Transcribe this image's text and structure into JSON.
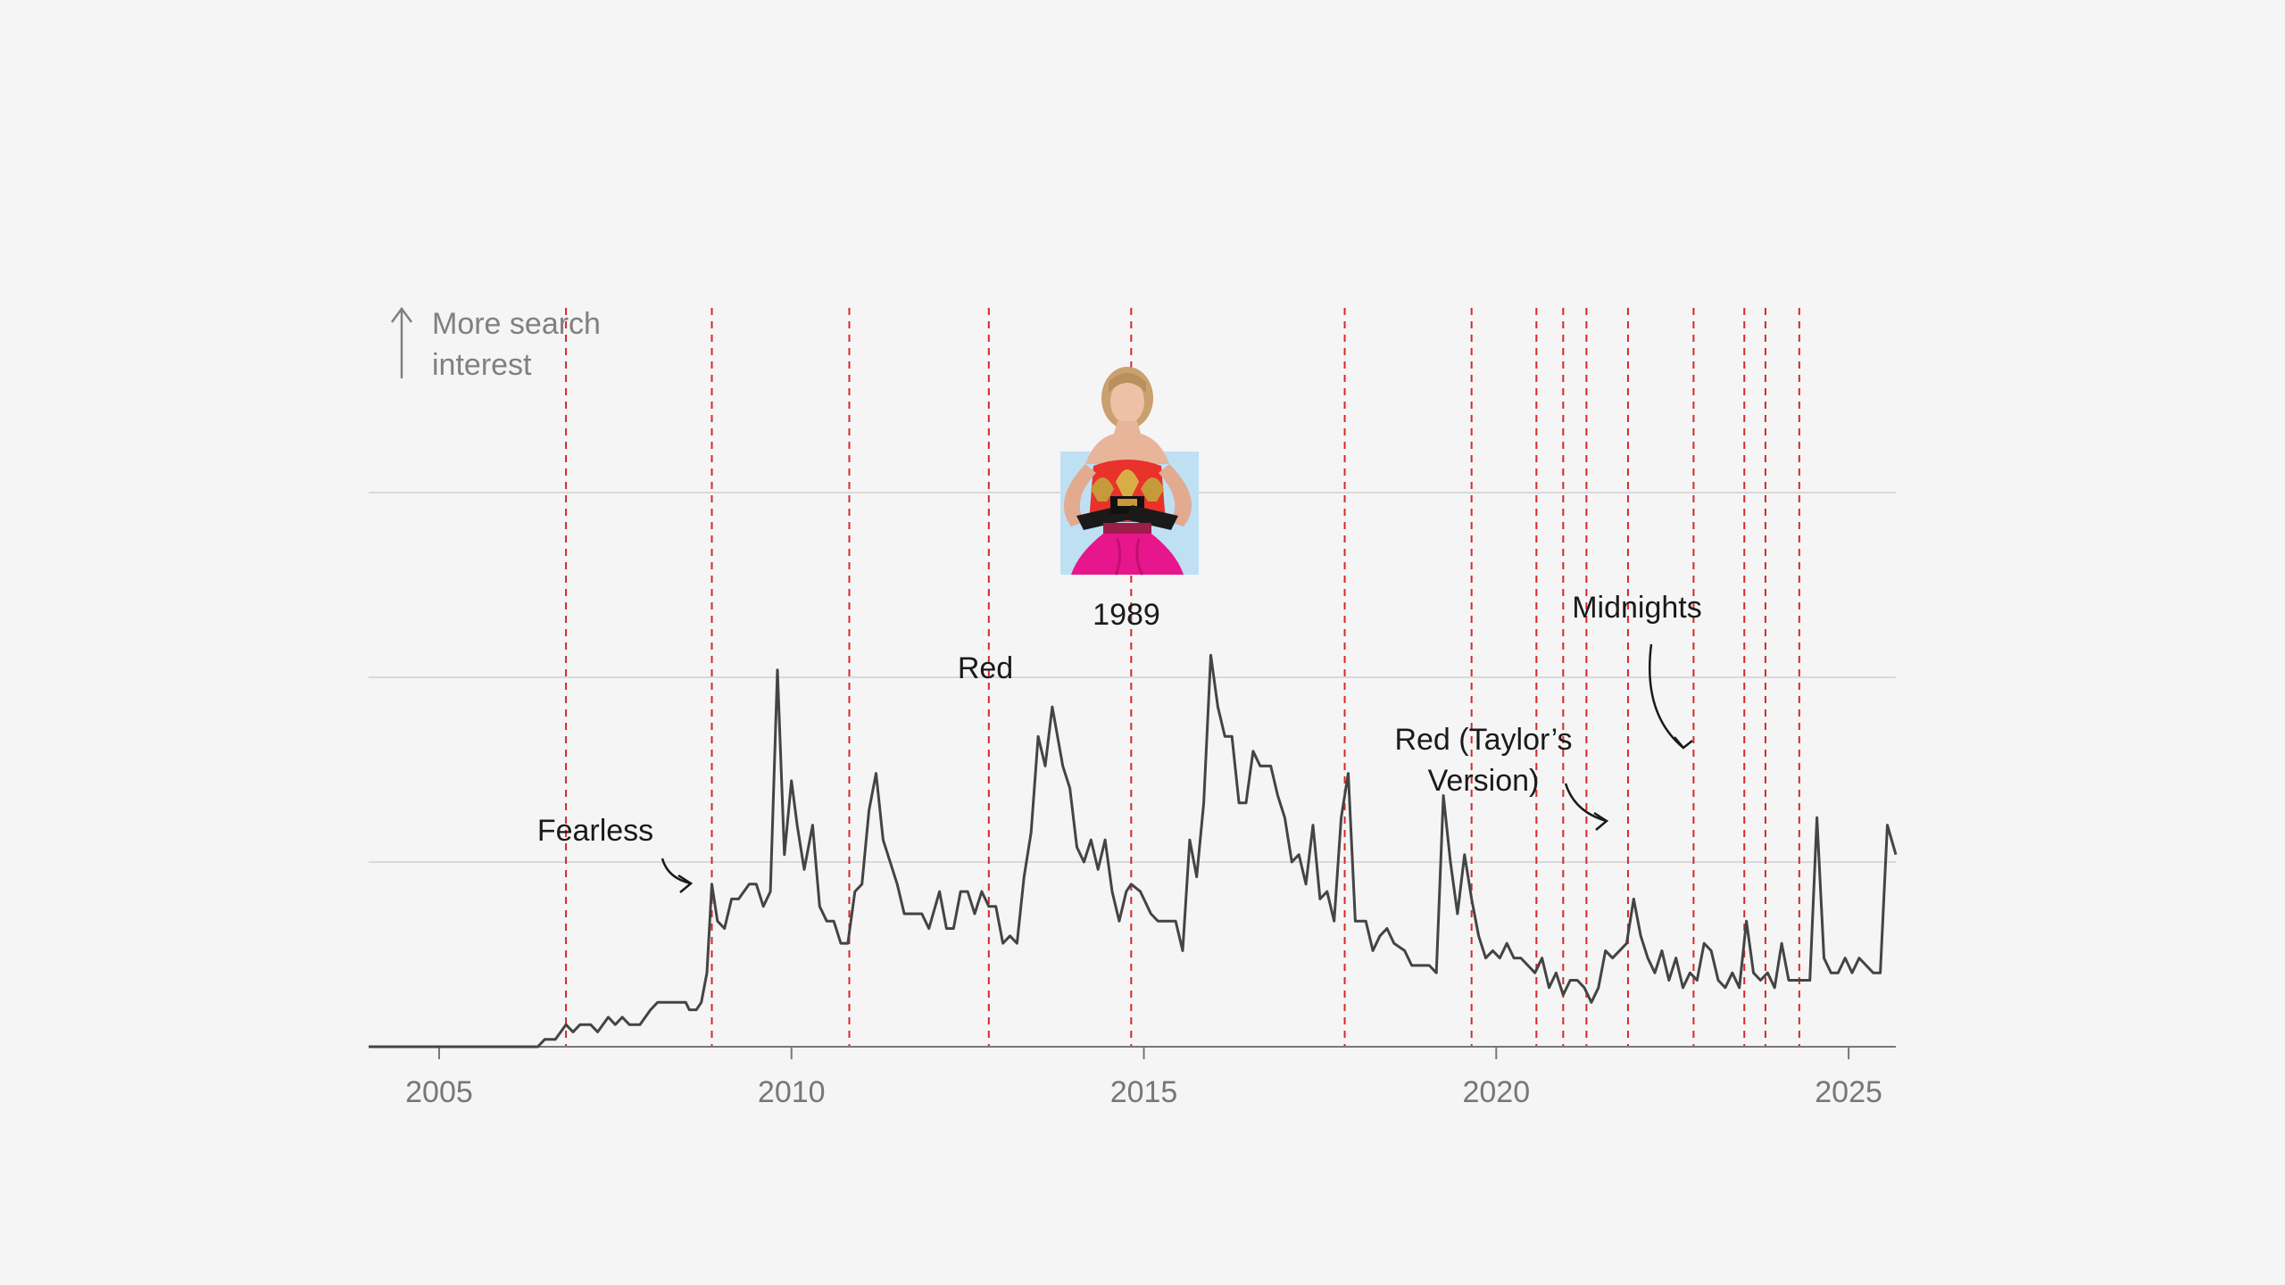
{
  "chart_data": {
    "type": "line",
    "ylabel_lines": [
      "More search",
      "interest"
    ],
    "xlim": [
      2004.0,
      2025.67
    ],
    "ylim": [
      0,
      100
    ],
    "grid": true,
    "x_ticks": [
      {
        "value": 2005,
        "label": "2005"
      },
      {
        "value": 2010,
        "label": "2010"
      },
      {
        "value": 2015,
        "label": "2015"
      },
      {
        "value": 2020,
        "label": "2020"
      },
      {
        "value": 2025,
        "label": "2025"
      }
    ],
    "y_gridlines": [
      25,
      50,
      75
    ],
    "album_release_dates": [
      2006.8,
      2008.87,
      2010.82,
      2012.8,
      2014.82,
      2017.85,
      2019.65,
      2020.57,
      2020.95,
      2021.28,
      2021.87,
      2022.8,
      2023.52,
      2023.82,
      2024.3
    ],
    "annotations": [
      {
        "label_lines": [
          "Fearless"
        ],
        "x": 2008.87,
        "y": 22
      },
      {
        "label_lines": [
          "Red"
        ],
        "x": 2012.8,
        "y": 46
      },
      {
        "label_lines": [
          "1989"
        ],
        "x": 2014.82,
        "y": 53
      },
      {
        "label_lines": [
          "Red (Taylor’s",
          "Version)"
        ],
        "x": 2021.87,
        "y": 30
      },
      {
        "label_lines": [
          "Midnights"
        ],
        "x": 2022.8,
        "y": 40
      }
    ],
    "series": [
      {
        "values": [
          [
            2004.0,
            0
          ],
          [
            2006.0,
            0
          ],
          [
            2006.4,
            0
          ],
          [
            2006.5,
            1
          ],
          [
            2006.65,
            1
          ],
          [
            2006.8,
            3
          ],
          [
            2006.9,
            2
          ],
          [
            2007.0,
            3
          ],
          [
            2007.15,
            3
          ],
          [
            2007.25,
            2
          ],
          [
            2007.4,
            4
          ],
          [
            2007.5,
            3
          ],
          [
            2007.6,
            4
          ],
          [
            2007.7,
            3
          ],
          [
            2007.85,
            3
          ],
          [
            2008.0,
            5
          ],
          [
            2008.1,
            6
          ],
          [
            2008.5,
            6
          ],
          [
            2008.55,
            5
          ],
          [
            2008.65,
            5
          ],
          [
            2008.72,
            6
          ],
          [
            2008.8,
            10
          ],
          [
            2008.87,
            22
          ],
          [
            2008.95,
            17
          ],
          [
            2009.05,
            16
          ],
          [
            2009.15,
            20
          ],
          [
            2009.25,
            20
          ],
          [
            2009.4,
            22
          ],
          [
            2009.5,
            22
          ],
          [
            2009.6,
            19
          ],
          [
            2009.7,
            21
          ],
          [
            2009.8,
            51
          ],
          [
            2009.9,
            26
          ],
          [
            2010.0,
            36
          ],
          [
            2010.08,
            30
          ],
          [
            2010.18,
            24
          ],
          [
            2010.3,
            30
          ],
          [
            2010.4,
            19
          ],
          [
            2010.5,
            17
          ],
          [
            2010.6,
            17
          ],
          [
            2010.7,
            14
          ],
          [
            2010.8,
            14
          ],
          [
            2010.9,
            21
          ],
          [
            2011.0,
            22
          ],
          [
            2011.1,
            32
          ],
          [
            2011.2,
            37
          ],
          [
            2011.3,
            28
          ],
          [
            2011.5,
            22
          ],
          [
            2011.6,
            18
          ],
          [
            2011.85,
            18
          ],
          [
            2011.95,
            16
          ],
          [
            2012.1,
            21
          ],
          [
            2012.2,
            16
          ],
          [
            2012.3,
            16
          ],
          [
            2012.4,
            21
          ],
          [
            2012.5,
            21
          ],
          [
            2012.6,
            18
          ],
          [
            2012.7,
            21
          ],
          [
            2012.8,
            19
          ],
          [
            2012.9,
            19
          ],
          [
            2013.0,
            14
          ],
          [
            2013.1,
            15
          ],
          [
            2013.2,
            14
          ],
          [
            2013.3,
            23
          ],
          [
            2013.4,
            29
          ],
          [
            2013.5,
            42
          ],
          [
            2013.6,
            38
          ],
          [
            2013.7,
            46
          ],
          [
            2013.85,
            38
          ],
          [
            2013.95,
            35
          ],
          [
            2014.05,
            27
          ],
          [
            2014.15,
            25
          ],
          [
            2014.25,
            28
          ],
          [
            2014.35,
            24
          ],
          [
            2014.45,
            28
          ],
          [
            2014.55,
            21
          ],
          [
            2014.65,
            17
          ],
          [
            2014.75,
            21
          ],
          [
            2014.82,
            22
          ],
          [
            2014.95,
            21
          ],
          [
            2015.1,
            18
          ],
          [
            2015.2,
            17
          ],
          [
            2015.3,
            17
          ],
          [
            2015.45,
            17
          ],
          [
            2015.55,
            13
          ],
          [
            2015.65,
            28
          ],
          [
            2015.75,
            23
          ],
          [
            2015.85,
            33
          ],
          [
            2015.95,
            53
          ],
          [
            2016.05,
            46
          ],
          [
            2016.15,
            42
          ],
          [
            2016.25,
            42
          ],
          [
            2016.35,
            33
          ],
          [
            2016.45,
            33
          ],
          [
            2016.55,
            40
          ],
          [
            2016.65,
            38
          ],
          [
            2016.8,
            38
          ],
          [
            2016.9,
            34
          ],
          [
            2017.0,
            31
          ],
          [
            2017.1,
            25
          ],
          [
            2017.2,
            26
          ],
          [
            2017.3,
            22
          ],
          [
            2017.4,
            30
          ],
          [
            2017.5,
            20
          ],
          [
            2017.6,
            21
          ],
          [
            2017.7,
            17
          ],
          [
            2017.8,
            31
          ],
          [
            2017.9,
            37
          ],
          [
            2018.0,
            17
          ],
          [
            2018.15,
            17
          ],
          [
            2018.25,
            13
          ],
          [
            2018.35,
            15
          ],
          [
            2018.45,
            16
          ],
          [
            2018.55,
            14
          ],
          [
            2018.7,
            13
          ],
          [
            2018.8,
            11
          ],
          [
            2018.95,
            11
          ],
          [
            2019.05,
            11
          ],
          [
            2019.15,
            10
          ],
          [
            2019.25,
            34
          ],
          [
            2019.35,
            25
          ],
          [
            2019.45,
            18
          ],
          [
            2019.55,
            26
          ],
          [
            2019.65,
            20
          ],
          [
            2019.75,
            15
          ],
          [
            2019.85,
            12
          ],
          [
            2019.95,
            13
          ],
          [
            2020.05,
            12
          ],
          [
            2020.15,
            14
          ],
          [
            2020.25,
            12
          ],
          [
            2020.35,
            12
          ],
          [
            2020.45,
            11
          ],
          [
            2020.55,
            10
          ],
          [
            2020.65,
            12
          ],
          [
            2020.75,
            8
          ],
          [
            2020.85,
            10
          ],
          [
            2020.95,
            7
          ],
          [
            2021.05,
            9
          ],
          [
            2021.15,
            9
          ],
          [
            2021.25,
            8
          ],
          [
            2021.35,
            6
          ],
          [
            2021.45,
            8
          ],
          [
            2021.55,
            13
          ],
          [
            2021.65,
            12
          ],
          [
            2021.75,
            13
          ],
          [
            2021.85,
            14
          ],
          [
            2021.95,
            20
          ],
          [
            2022.05,
            15
          ],
          [
            2022.15,
            12
          ],
          [
            2022.25,
            10
          ],
          [
            2022.35,
            13
          ],
          [
            2022.45,
            9
          ],
          [
            2022.55,
            12
          ],
          [
            2022.65,
            8
          ],
          [
            2022.75,
            10
          ],
          [
            2022.85,
            9
          ],
          [
            2022.95,
            14
          ],
          [
            2023.05,
            13
          ],
          [
            2023.15,
            9
          ],
          [
            2023.25,
            8
          ],
          [
            2023.35,
            10
          ],
          [
            2023.45,
            8
          ],
          [
            2023.55,
            17
          ],
          [
            2023.65,
            10
          ],
          [
            2023.75,
            9
          ],
          [
            2023.85,
            10
          ],
          [
            2023.95,
            8
          ],
          [
            2024.05,
            14
          ],
          [
            2024.15,
            9
          ],
          [
            2024.25,
            9
          ],
          [
            2024.35,
            9
          ],
          [
            2024.45,
            9
          ],
          [
            2024.55,
            31
          ],
          [
            2024.65,
            12
          ],
          [
            2024.75,
            10
          ],
          [
            2024.85,
            10
          ],
          [
            2024.95,
            12
          ],
          [
            2025.05,
            10
          ],
          [
            2025.15,
            12
          ],
          [
            2025.25,
            11
          ],
          [
            2025.35,
            10
          ],
          [
            2025.45,
            10
          ],
          [
            2025.55,
            30
          ],
          [
            2025.67,
            26
          ]
        ]
      }
    ]
  },
  "photo": {
    "name": "photo-taylor-swift-grammys",
    "colors": {
      "background": "#bfe0f3",
      "skin": "#e8b49a",
      "hair": "#c9a06e",
      "dress_top": "#e8322a",
      "skirt": "#e8168d",
      "trophy": "#c69a3a"
    }
  },
  "colors": {
    "line": "#444444",
    "release": "#d42a2a",
    "grid": "#d9d9d9",
    "axis": "#777777",
    "background": "#f5f5f5"
  }
}
